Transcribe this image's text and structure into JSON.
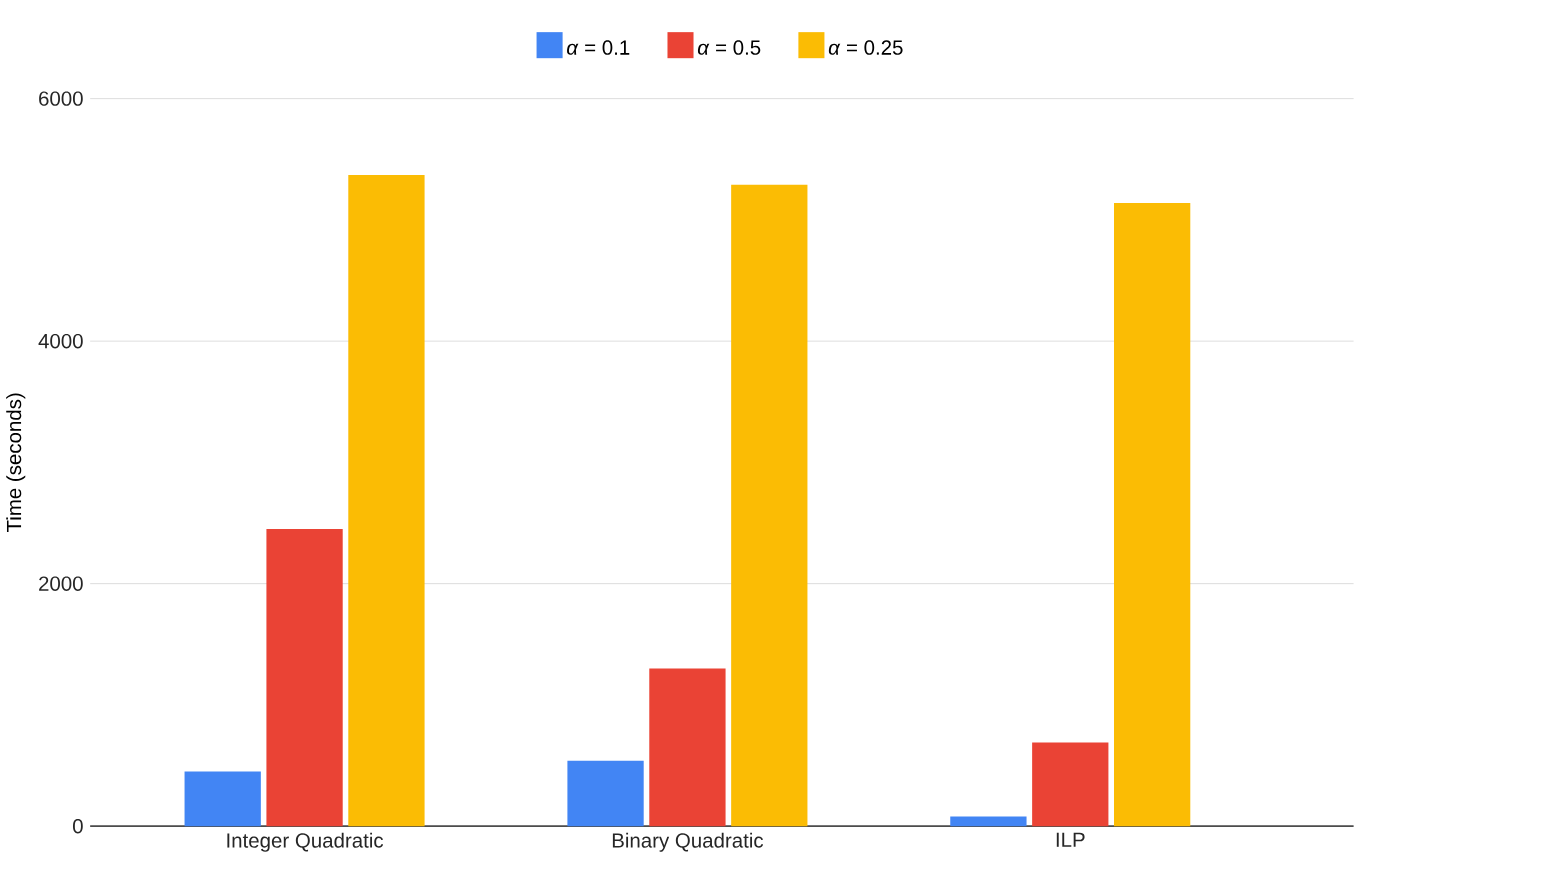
{
  "chart_data": {
    "type": "bar",
    "ylabel": "Time (seconds)",
    "categories": [
      "Integer Quadratic",
      "Binary Quadratic",
      "ILP"
    ],
    "series": [
      {
        "name": "*α* = 0.1",
        "color": "#4285f4",
        "values": [
          450,
          540,
          80
        ]
      },
      {
        "name": "*α* = 0.5",
        "color": "#ea4335",
        "values": [
          2450,
          1300,
          690
        ]
      },
      {
        "name": "*α* = 0.25",
        "color": "#fbbc04",
        "values": [
          5370,
          5290,
          5140
        ]
      }
    ],
    "ylim": [
      0,
      6000
    ],
    "yticks": [
      0,
      2000,
      4000,
      6000
    ],
    "grid": "y",
    "legend": "top"
  }
}
